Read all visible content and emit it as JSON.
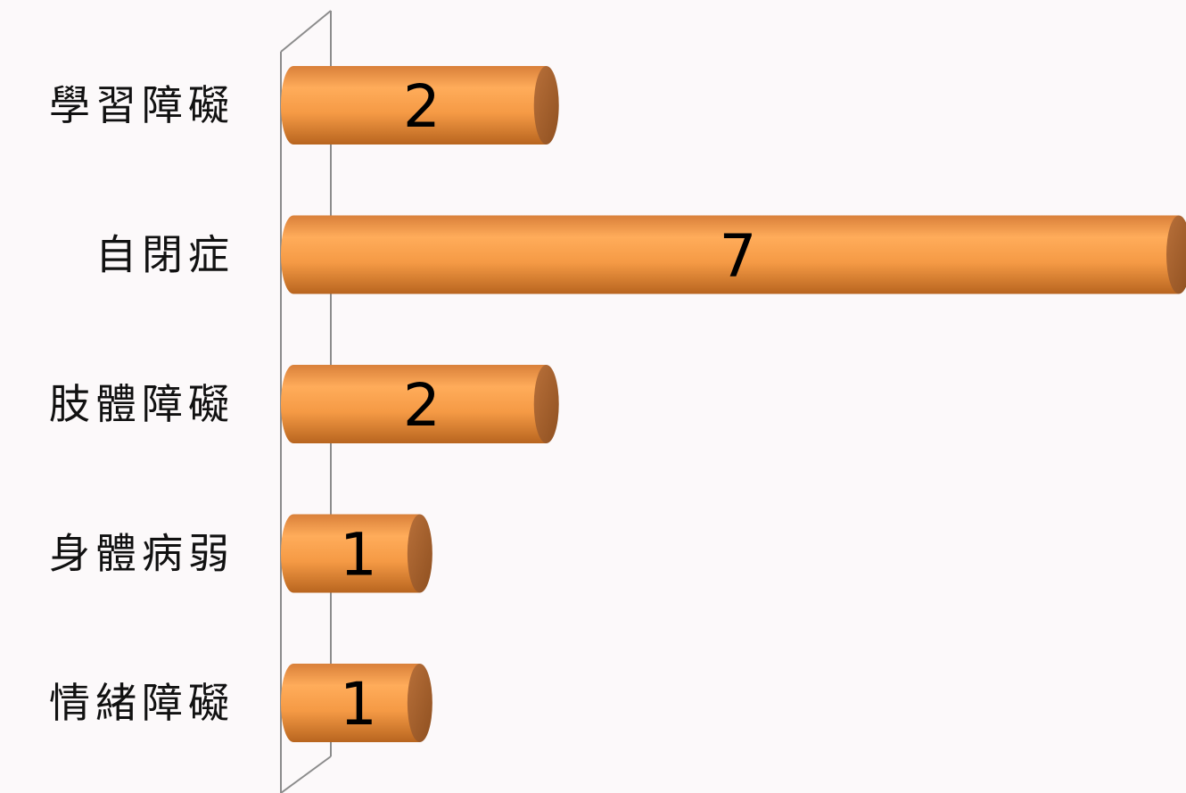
{
  "chart_data": {
    "type": "bar",
    "orientation": "horizontal",
    "style": "3d-cylinder",
    "title": "",
    "xlabel": "",
    "ylabel": "",
    "categories": [
      "學習障礙",
      "自閉症",
      "肢體障礙",
      "身體病弱",
      "情緒障礙"
    ],
    "values": [
      2,
      7,
      2,
      1,
      1
    ],
    "value_labels": [
      "2",
      "7",
      "2",
      "1",
      "1"
    ],
    "xlim": [
      0,
      7
    ],
    "grid": false,
    "legend": "none",
    "colors": {
      "bar_light": "#ffaa55",
      "bar_mid": "#f79640",
      "bar_dark": "#b8651f",
      "bar_end": "#a8622d",
      "axis": "#8c8c8c",
      "background": "#fcf9fa"
    }
  }
}
